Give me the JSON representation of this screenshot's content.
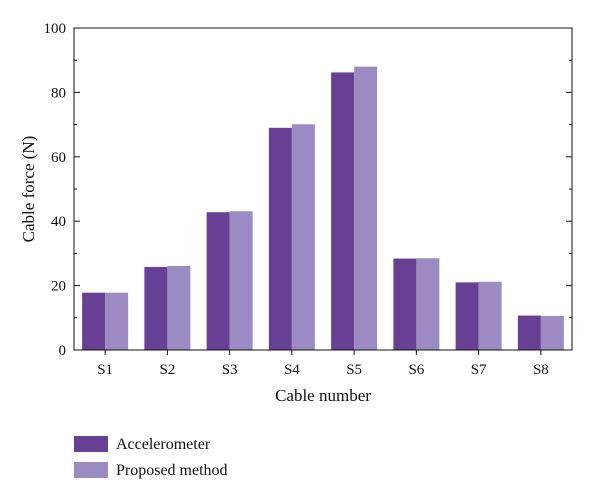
{
  "chart_data": {
    "type": "bar",
    "title": "",
    "xlabel": "Cable number",
    "ylabel": "Cable force (N)",
    "categories": [
      "S1",
      "S2",
      "S3",
      "S4",
      "S5",
      "S6",
      "S7",
      "S8"
    ],
    "ylim": [
      0,
      100
    ],
    "yticks": [
      "0",
      "20",
      "40",
      "60",
      "80",
      "100"
    ],
    "grid": false,
    "legend_position": "bottom-left",
    "series": [
      {
        "name": "Accelerometer",
        "color": "#673f94",
        "values": [
          17.8,
          25.8,
          42.8,
          69.0,
          86.2,
          28.4,
          21.0,
          10.7
        ]
      },
      {
        "name": "Proposed method",
        "color": "#9b8bc2",
        "values": [
          17.8,
          26.1,
          43.1,
          70.1,
          88.0,
          28.5,
          21.2,
          10.6
        ]
      }
    ]
  }
}
